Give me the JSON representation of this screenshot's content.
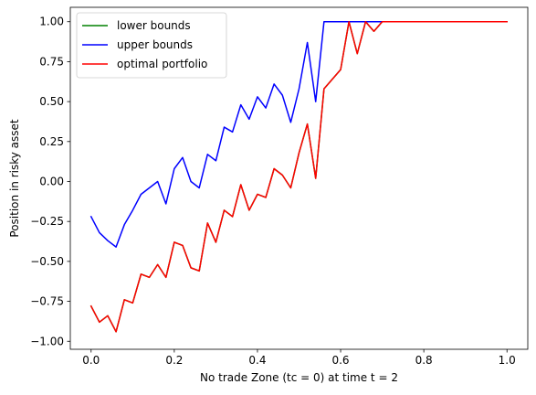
{
  "chart_data": {
    "type": "line",
    "xlabel": "No trade Zone (tc = 0) at time t = 2",
    "ylabel": "Position in risky asset",
    "xlim": [
      -0.05,
      1.05
    ],
    "ylim": [
      -1.05,
      1.09
    ],
    "xticks": [
      0.0,
      0.2,
      0.4,
      0.6,
      0.8,
      1.0
    ],
    "xtick_labels": [
      "0.0",
      "0.2",
      "0.4",
      "0.6",
      "0.8",
      "1.0"
    ],
    "yticks": [
      -1.0,
      -0.75,
      -0.5,
      -0.25,
      0.0,
      0.25,
      0.5,
      0.75,
      1.0
    ],
    "ytick_labels": [
      "−1.00",
      "−0.75",
      "−0.50",
      "−0.25",
      "0.00",
      "0.25",
      "0.50",
      "0.75",
      "1.00"
    ],
    "grid": false,
    "legend_position": "top-left",
    "x": [
      0.0,
      0.02,
      0.04,
      0.06,
      0.08,
      0.1,
      0.12,
      0.14,
      0.16,
      0.18,
      0.2,
      0.22,
      0.24,
      0.26,
      0.28,
      0.3,
      0.32,
      0.34,
      0.36,
      0.38,
      0.4,
      0.42,
      0.44,
      0.46,
      0.48,
      0.5,
      0.52,
      0.54,
      0.56,
      0.58,
      0.6,
      0.62,
      0.64,
      0.66,
      0.68,
      0.7,
      0.72,
      0.74,
      0.76,
      0.78,
      0.8,
      0.82,
      0.84,
      0.86,
      0.88,
      0.9,
      0.92,
      0.94,
      0.96,
      0.98,
      1.0
    ],
    "series": [
      {
        "name": "lower bounds",
        "color": "#008000",
        "values": [
          -0.78,
          -0.88,
          -0.84,
          -0.94,
          -0.74,
          -0.76,
          -0.58,
          -0.6,
          -0.52,
          -0.6,
          -0.38,
          -0.4,
          -0.54,
          -0.56,
          -0.26,
          -0.38,
          -0.18,
          -0.22,
          -0.02,
          -0.18,
          -0.08,
          -0.1,
          0.08,
          0.04,
          -0.04,
          0.18,
          0.36,
          0.02,
          0.58,
          0.64,
          0.7,
          1.0,
          0.8,
          1.0,
          0.94,
          1.0,
          1.0,
          1.0,
          1.0,
          1.0,
          1.0,
          1.0,
          1.0,
          1.0,
          1.0,
          1.0,
          1.0,
          1.0,
          1.0,
          1.0,
          1.0
        ]
      },
      {
        "name": "upper bounds",
        "color": "#0000ff",
        "values": [
          -0.22,
          -0.32,
          -0.37,
          -0.41,
          -0.27,
          -0.18,
          -0.08,
          -0.04,
          0.0,
          -0.14,
          0.08,
          0.15,
          0.0,
          -0.04,
          0.17,
          0.13,
          0.34,
          0.31,
          0.48,
          0.39,
          0.53,
          0.46,
          0.61,
          0.54,
          0.37,
          0.58,
          0.87,
          0.5,
          1.0,
          1.0,
          1.0,
          1.0,
          1.0,
          1.0,
          1.0,
          1.0,
          1.0,
          1.0,
          1.0,
          1.0,
          1.0,
          1.0,
          1.0,
          1.0,
          1.0,
          1.0,
          1.0,
          1.0,
          1.0,
          1.0,
          1.0
        ]
      },
      {
        "name": "optimal portfolio",
        "color": "#ff0000",
        "values": [
          -0.78,
          -0.88,
          -0.84,
          -0.94,
          -0.74,
          -0.76,
          -0.58,
          -0.6,
          -0.52,
          -0.6,
          -0.38,
          -0.4,
          -0.54,
          -0.56,
          -0.26,
          -0.38,
          -0.18,
          -0.22,
          -0.02,
          -0.18,
          -0.08,
          -0.1,
          0.08,
          0.04,
          -0.04,
          0.18,
          0.36,
          0.02,
          0.58,
          0.64,
          0.7,
          1.0,
          0.8,
          1.0,
          0.94,
          1.0,
          1.0,
          1.0,
          1.0,
          1.0,
          1.0,
          1.0,
          1.0,
          1.0,
          1.0,
          1.0,
          1.0,
          1.0,
          1.0,
          1.0,
          1.0
        ]
      }
    ]
  }
}
